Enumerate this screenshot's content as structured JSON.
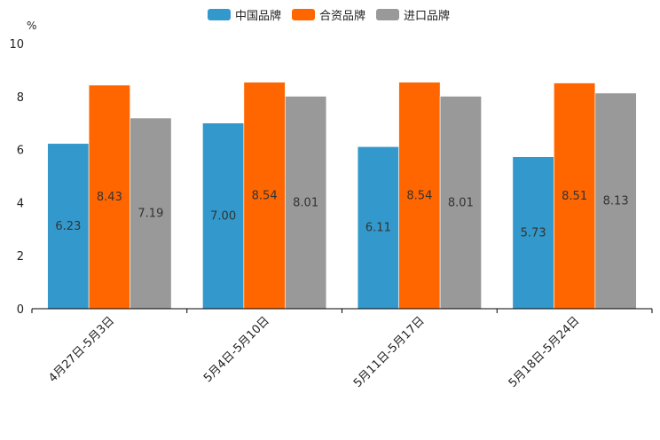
{
  "chart_data": {
    "type": "bar",
    "title": "",
    "unit_label": "%",
    "xlabel": "",
    "ylabel": "",
    "ylim": [
      0,
      10
    ],
    "yticks": [
      "0",
      "2",
      "4",
      "6",
      "8",
      "10"
    ],
    "categories": [
      "4月27日-5月3日",
      "5月4日-5月10日",
      "5月11日-5月17日",
      "5月18日-5月24日"
    ],
    "series": [
      {
        "name": "中国品牌",
        "color": "#3399cc",
        "values": [
          6.23,
          7.0,
          6.11,
          5.73
        ],
        "labels": [
          "6.23",
          "7.00",
          "6.11",
          "5.73"
        ]
      },
      {
        "name": "合资品牌",
        "color": "#ff6600",
        "values": [
          8.43,
          8.54,
          8.54,
          8.51
        ],
        "labels": [
          "8.43",
          "8.54",
          "8.54",
          "8.51"
        ]
      },
      {
        "name": "进口品牌",
        "color": "#999999",
        "values": [
          7.19,
          8.01,
          8.01,
          8.13
        ],
        "labels": [
          "7.19",
          "8.01",
          "8.01",
          "8.13"
        ]
      }
    ],
    "legend_position": "top-center",
    "grid": false
  }
}
